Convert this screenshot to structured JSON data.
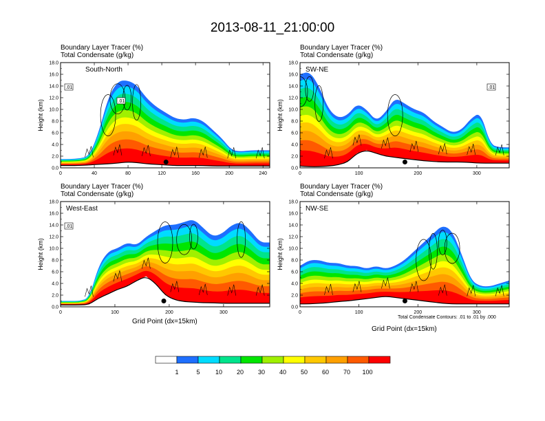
{
  "title": "2013-08-11_21:00:00",
  "field_title": "Boundary Layer Tracer   (%)",
  "contour_title": "Total Condensate   (g/kg)",
  "ylabel": "Height (km)",
  "xlabel": "Grid Point (dx=15km)",
  "contour_note": "Total Condensate Contours: .01 to .01 by .000",
  "y_ticks": [
    "0.0",
    "2.0",
    "4.0",
    "6.0",
    "8.0",
    "10.0",
    "12.0",
    "14.0",
    "16.0",
    "18.0"
  ],
  "colorbar": {
    "labels": [
      "1",
      "5",
      "10",
      "20",
      "30",
      "40",
      "50",
      "60",
      "70",
      "100"
    ],
    "colors": [
      "#ffffff",
      "#1e6fff",
      "#00dcff",
      "#00e48c",
      "#00e600",
      "#a0f000",
      "#ffff00",
      "#ffc800",
      "#ffa000",
      "#ff5a00",
      "#ff0000"
    ]
  },
  "chart_data": [
    {
      "type": "heatmap",
      "name": "South-North",
      "xlim": [
        0,
        248
      ],
      "ylim": [
        0,
        18
      ],
      "x_ticks": [
        0,
        40,
        80,
        120,
        160,
        200,
        240
      ],
      "marker_x": 125,
      "contour_labels": [
        ".01",
        ".01"
      ],
      "top_km": [
        1.5,
        1.5,
        1.6,
        2,
        6,
        12,
        14.8,
        15,
        14.2,
        12,
        10.5,
        9.5,
        8.5,
        8.2,
        8.6,
        8,
        6.5,
        5,
        3,
        2.8,
        3,
        3,
        3
      ],
      "ground_km": [
        0.4,
        0.4,
        0.4,
        0.5,
        0.6,
        0.7,
        0.8,
        1.0,
        0.9,
        0.7,
        0.6,
        0.5,
        0.4,
        0.4,
        0.4,
        0.4,
        0.3,
        0.3,
        0.3,
        0.3,
        0.3,
        0.3,
        0.3
      ]
    },
    {
      "type": "heatmap",
      "name": "SW-NE",
      "xlim": [
        0,
        355
      ],
      "ylim": [
        0,
        18
      ],
      "x_ticks": [
        0,
        100,
        200,
        300
      ],
      "marker_x": 178,
      "contour_labels": [
        ".01"
      ],
      "top_km": [
        16,
        16.5,
        14,
        10,
        8.5,
        9,
        11,
        10,
        8,
        9.5,
        12,
        11,
        10,
        9.5,
        8,
        7,
        6,
        6.5,
        8.5,
        9.5,
        4,
        3.5,
        3.5
      ],
      "ground_km": [
        0.3,
        0.2,
        0.2,
        0.3,
        0.5,
        1.0,
        2.5,
        3.0,
        2.5,
        2.0,
        1.8,
        1.6,
        1.4,
        1.2,
        1.1,
        1.0,
        1.0,
        1.0,
        0.9,
        0.8,
        0.8,
        0.8,
        0.8
      ]
    },
    {
      "type": "heatmap",
      "name": "West-East",
      "xlim": [
        0,
        385
      ],
      "ylim": [
        0,
        18
      ],
      "x_ticks": [
        0,
        100,
        200,
        300
      ],
      "marker_x": 190,
      "contour_labels": [
        ".01"
      ],
      "top_km": [
        1,
        1,
        1,
        1.5,
        7,
        9.5,
        10,
        11,
        10.5,
        12,
        13,
        14,
        14,
        14.5,
        15,
        13.5,
        12,
        12.5,
        14,
        14.5,
        13,
        11,
        11
      ],
      "ground_km": [
        0.3,
        0.3,
        0.3,
        0.4,
        1.5,
        2.2,
        3.0,
        3.5,
        4.5,
        5.2,
        4.0,
        2.0,
        1.2,
        0.9,
        0.8,
        0.7,
        0.7,
        0.6,
        0.6,
        0.6,
        0.6,
        0.6,
        0.6
      ]
    },
    {
      "type": "heatmap",
      "name": "NW-SE",
      "xlim": [
        0,
        355
      ],
      "ylim": [
        0,
        18
      ],
      "x_ticks": [
        0,
        100,
        200,
        300
      ],
      "marker_x": 178,
      "contour_labels": [],
      "top_km": [
        7,
        8,
        8,
        7.5,
        7.5,
        7,
        7,
        6.5,
        7,
        6.5,
        7,
        8,
        9.5,
        11,
        12.5,
        14,
        13,
        9,
        4.5,
        3.5,
        3.5,
        4,
        4.5
      ],
      "ground_km": [
        0.5,
        0.5,
        0.6,
        0.7,
        0.9,
        1.0,
        1.2,
        1.4,
        1.6,
        1.8,
        1.6,
        1.4,
        1.2,
        1.0,
        0.8,
        0.6,
        0.5,
        0.5,
        0.5,
        0.5,
        0.5,
        0.5,
        0.5
      ]
    }
  ]
}
